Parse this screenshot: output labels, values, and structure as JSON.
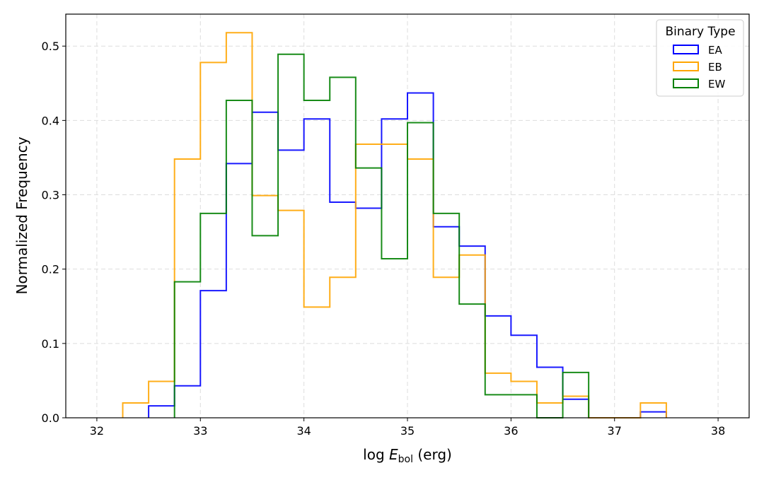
{
  "chart_data": {
    "type": "histogram-step",
    "title": "",
    "xlabel_prefix": "log ",
    "xlabel_var": "E",
    "xlabel_sub": "bol",
    "xlabel_suffix": " (erg)",
    "ylabel": "Normalized Frequency",
    "xlim": [
      31.7,
      38.3
    ],
    "ylim": [
      0,
      0.543
    ],
    "xticks": [
      32,
      33,
      34,
      35,
      36,
      37,
      38
    ],
    "xtick_labels": [
      "32",
      "33",
      "34",
      "35",
      "36",
      "37",
      "38"
    ],
    "yticks": [
      0.0,
      0.1,
      0.2,
      0.3,
      0.4,
      0.5
    ],
    "ytick_labels": [
      "0.0",
      "0.1",
      "0.2",
      "0.3",
      "0.4",
      "0.5"
    ],
    "grid": true,
    "legend": {
      "title": "Binary Type",
      "placement": "top-right"
    },
    "bin_edges_start": 32.25,
    "bin_width": 0.25,
    "series": [
      {
        "name": "EA",
        "color": "#0000ff",
        "values": [
          0,
          0.016,
          0.043,
          0.171,
          0.342,
          0.411,
          0.36,
          0.402,
          0.29,
          0.282,
          0.402,
          0.437,
          0.257,
          0.231,
          0.137,
          0.111,
          0.068,
          0.025,
          0,
          0,
          0.008
        ]
      },
      {
        "name": "EB",
        "color": "#ffa500",
        "values": [
          0.02,
          0.049,
          0.348,
          0.478,
          0.518,
          0.299,
          0.279,
          0.149,
          0.189,
          0.368,
          0.368,
          0.348,
          0.189,
          0.219,
          0.06,
          0.049,
          0.02,
          0.029,
          0,
          0,
          0.02
        ]
      },
      {
        "name": "EW",
        "color": "#008000",
        "values": [
          0,
          0,
          0.183,
          0.275,
          0.427,
          0.245,
          0.489,
          0.427,
          0.458,
          0.336,
          0.214,
          0.397,
          0.275,
          0.153,
          0.031,
          0.031,
          0,
          0.061,
          0,
          0,
          0
        ]
      }
    ]
  }
}
